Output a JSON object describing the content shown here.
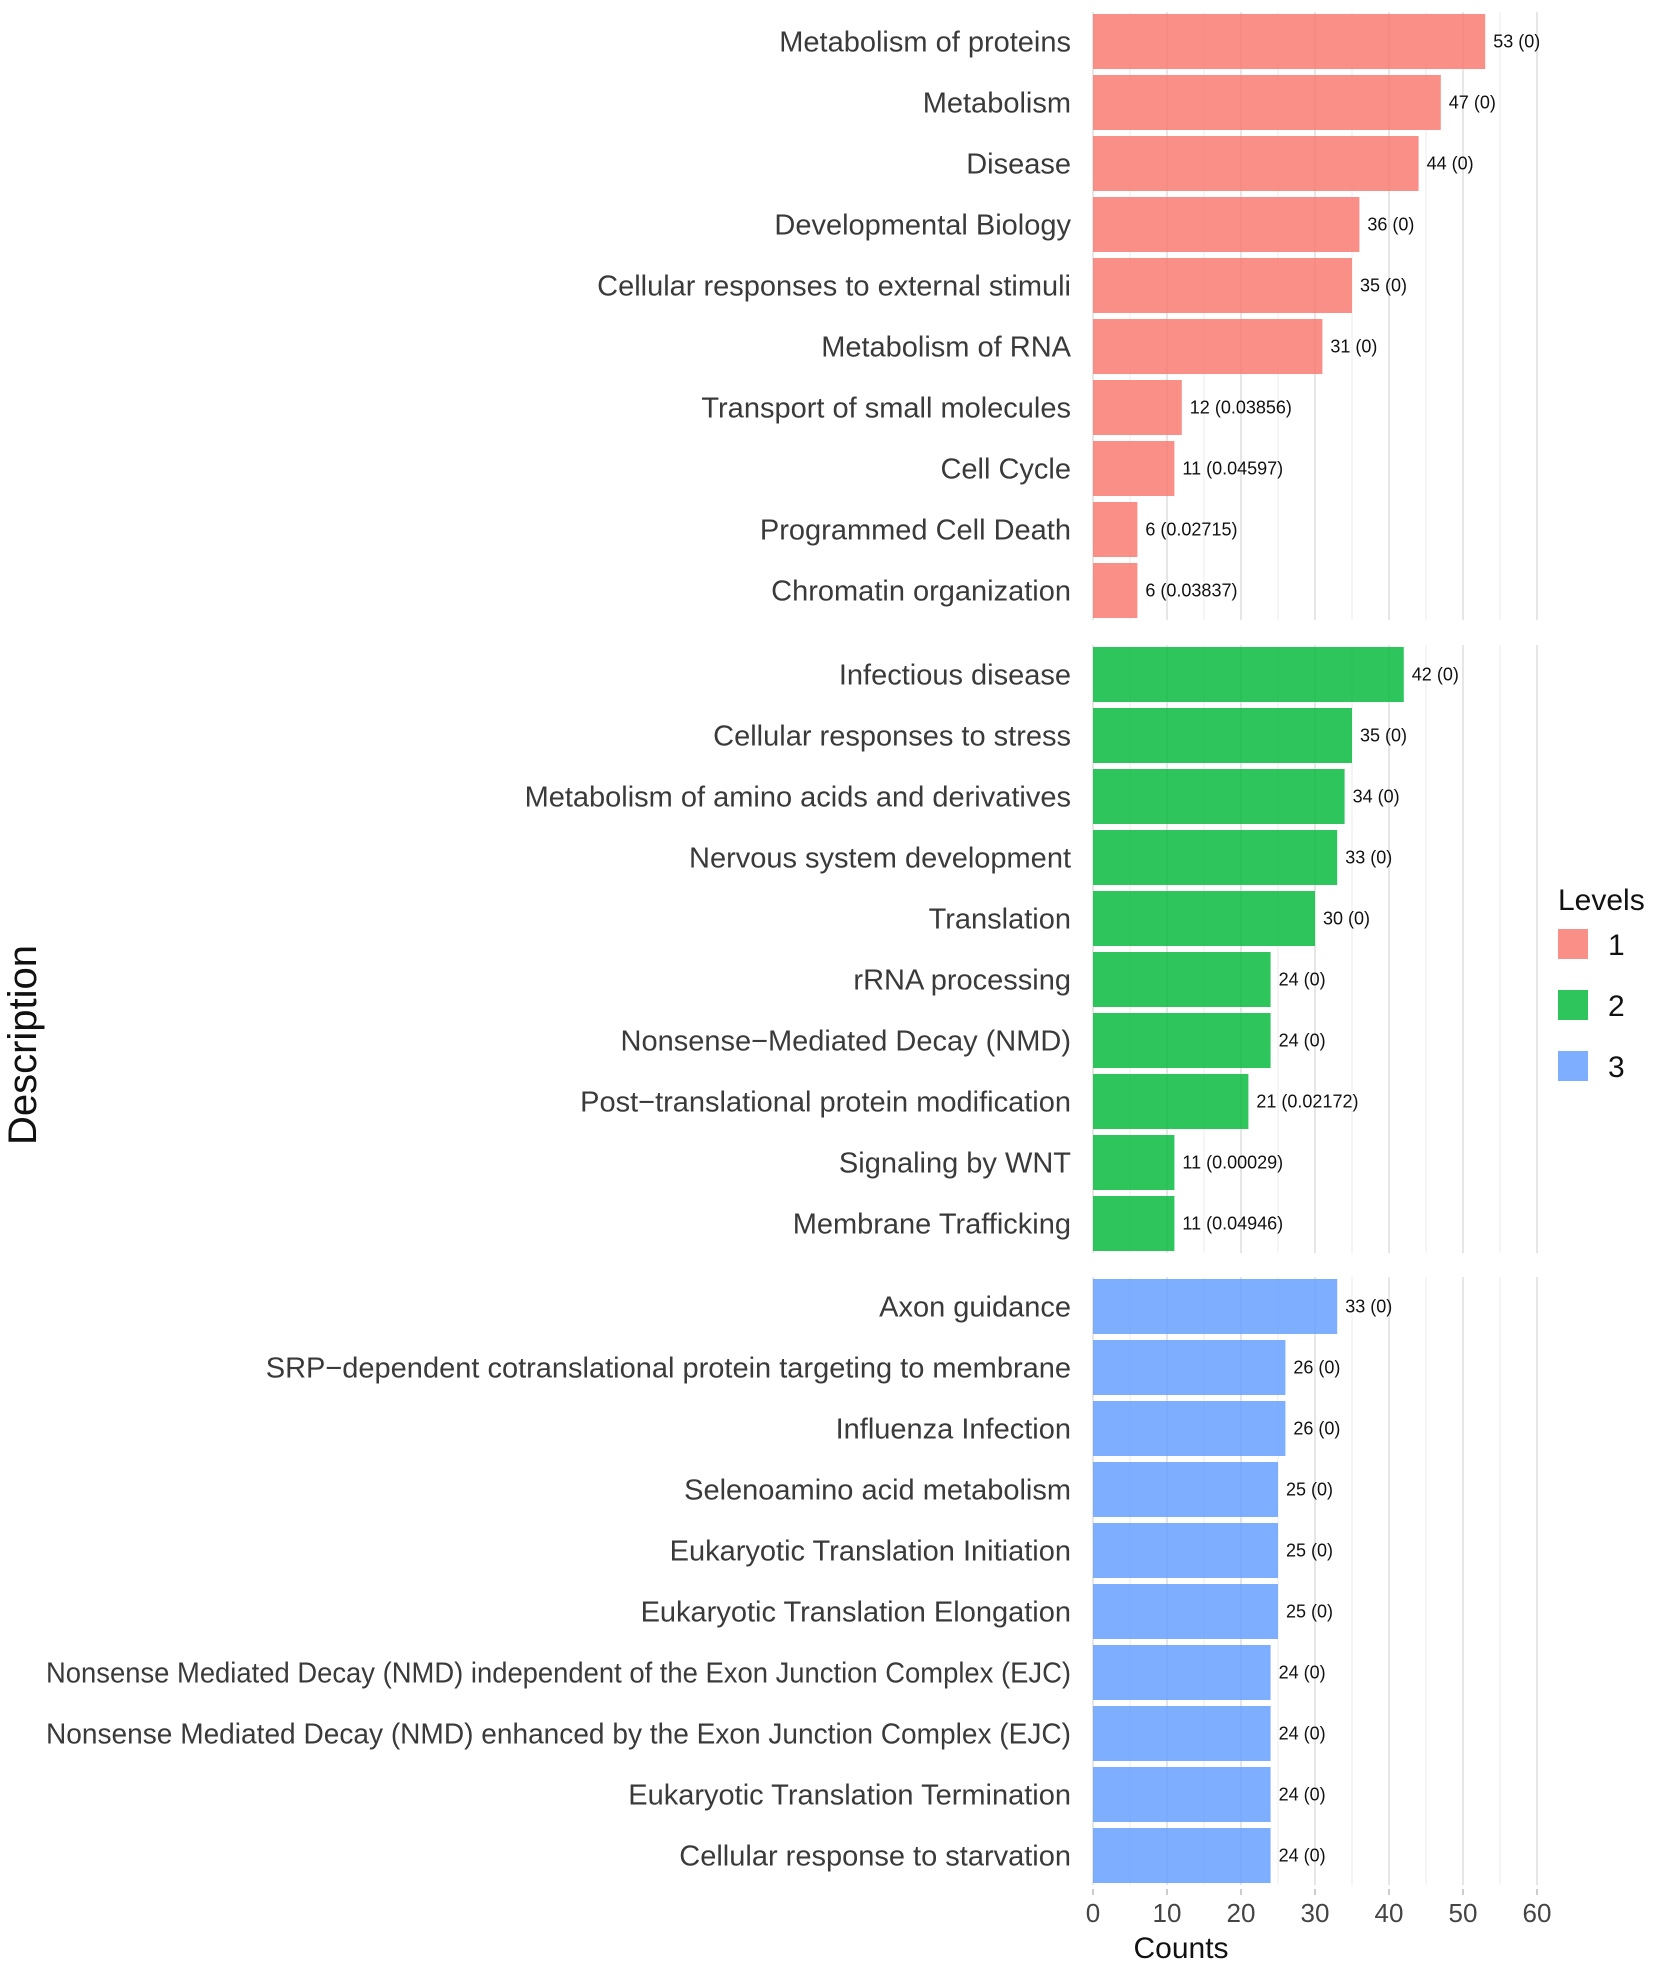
{
  "chart_data": {
    "type": "bar",
    "orientation": "horizontal",
    "xlabel": "Counts",
    "ylabel": "Description",
    "xlim": [
      0,
      60
    ],
    "xticks": [
      0,
      10,
      20,
      30,
      40,
      50,
      60
    ],
    "grid": true,
    "legend": {
      "title": "Levels",
      "position": "right",
      "items": [
        {
          "label": "1",
          "color": "#f8766d"
        },
        {
          "label": "2",
          "color": "#00ba38"
        },
        {
          "label": "3",
          "color": "#619cff"
        }
      ]
    },
    "panels": [
      {
        "level": "1",
        "color": "#f8766d",
        "bars": [
          {
            "label": "Metabolism of proteins",
            "value": 53,
            "annotation": "53 (0)"
          },
          {
            "label": "Metabolism",
            "value": 47,
            "annotation": "47 (0)"
          },
          {
            "label": "Disease",
            "value": 44,
            "annotation": "44 (0)"
          },
          {
            "label": "Developmental Biology",
            "value": 36,
            "annotation": "36 (0)"
          },
          {
            "label": "Cellular responses to external stimuli",
            "value": 35,
            "annotation": "35 (0)"
          },
          {
            "label": "Metabolism of RNA",
            "value": 31,
            "annotation": "31 (0)"
          },
          {
            "label": "Transport of small molecules",
            "value": 12,
            "annotation": "12 (0.03856)"
          },
          {
            "label": "Cell Cycle",
            "value": 11,
            "annotation": "11 (0.04597)"
          },
          {
            "label": "Programmed Cell Death",
            "value": 6,
            "annotation": "6 (0.02715)"
          },
          {
            "label": "Chromatin organization",
            "value": 6,
            "annotation": "6 (0.03837)"
          }
        ]
      },
      {
        "level": "2",
        "color": "#00ba38",
        "bars": [
          {
            "label": "Infectious disease",
            "value": 42,
            "annotation": "42 (0)"
          },
          {
            "label": "Cellular responses to stress",
            "value": 35,
            "annotation": "35 (0)"
          },
          {
            "label": "Metabolism of amino acids and derivatives",
            "value": 34,
            "annotation": "34 (0)"
          },
          {
            "label": "Nervous system development",
            "value": 33,
            "annotation": "33 (0)"
          },
          {
            "label": "Translation",
            "value": 30,
            "annotation": "30 (0)"
          },
          {
            "label": "rRNA processing",
            "value": 24,
            "annotation": "24 (0)"
          },
          {
            "label": "Nonsense−Mediated Decay (NMD)",
            "value": 24,
            "annotation": "24 (0)"
          },
          {
            "label": "Post−translational protein modification",
            "value": 21,
            "annotation": "21 (0.02172)"
          },
          {
            "label": "Signaling by WNT",
            "value": 11,
            "annotation": "11 (0.00029)"
          },
          {
            "label": "Membrane Trafficking",
            "value": 11,
            "annotation": "11 (0.04946)"
          }
        ]
      },
      {
        "level": "3",
        "color": "#619cff",
        "bars": [
          {
            "label": "Axon guidance",
            "value": 33,
            "annotation": "33 (0)"
          },
          {
            "label": "SRP−dependent cotranslational protein targeting to membrane",
            "value": 26,
            "annotation": "26 (0)"
          },
          {
            "label": "Influenza Infection",
            "value": 26,
            "annotation": "26 (0)"
          },
          {
            "label": "Selenoamino acid metabolism",
            "value": 25,
            "annotation": "25 (0)"
          },
          {
            "label": "Eukaryotic Translation Initiation",
            "value": 25,
            "annotation": "25 (0)"
          },
          {
            "label": "Eukaryotic Translation Elongation",
            "value": 25,
            "annotation": "25 (0)"
          },
          {
            "label": "Nonsense Mediated Decay (NMD) independent of the Exon Junction Complex (EJC)",
            "value": 24,
            "annotation": "24 (0)"
          },
          {
            "label": "Nonsense Mediated Decay (NMD) enhanced by the Exon Junction Complex (EJC)",
            "value": 24,
            "annotation": "24 (0)"
          },
          {
            "label": "Eukaryotic Translation Termination",
            "value": 24,
            "annotation": "24 (0)"
          },
          {
            "label": "Cellular response to starvation",
            "value": 24,
            "annotation": "24 (0)"
          }
        ]
      }
    ]
  }
}
